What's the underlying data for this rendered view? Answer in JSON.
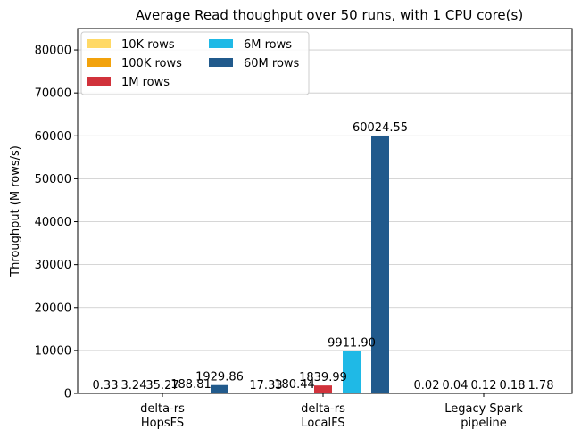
{
  "chart_data": {
    "type": "bar",
    "title": "Average Read thoughput over 50 runs, with 1 CPU core(s)",
    "xlabel": "",
    "ylabel": "Throughput (M rows/s)",
    "ylim": [
      0,
      85000
    ],
    "yticks": [
      0,
      10000,
      20000,
      30000,
      40000,
      50000,
      60000,
      70000,
      80000
    ],
    "grid": "horizontal",
    "legend_placement": "top-left",
    "legend_columns": 2,
    "categories": [
      [
        "delta-rs",
        "HopsFS"
      ],
      [
        "delta-rs",
        "LocalFS"
      ],
      [
        "Legacy Spark",
        "pipeline"
      ]
    ],
    "series": [
      {
        "name": "10K rows",
        "color": "#ffd966",
        "values": [
          0.33,
          17.33,
          0.02
        ],
        "labels": [
          "0.33",
          "17.33",
          "0.02"
        ]
      },
      {
        "name": "100K rows",
        "color": "#f2a20c",
        "values": [
          3.24,
          180.44,
          0.04
        ],
        "labels": [
          "3.24",
          "180.44",
          "0.04"
        ]
      },
      {
        "name": "1M rows",
        "color": "#d1323b",
        "values": [
          35.27,
          1839.99,
          0.12
        ],
        "labels": [
          "35.27",
          "1839.99",
          "0.12"
        ]
      },
      {
        "name": "6M rows",
        "color": "#1fb9e6",
        "values": [
          188.81,
          9911.9,
          0.18
        ],
        "labels": [
          "188.81",
          "9911.90",
          "0.18"
        ]
      },
      {
        "name": "60M rows",
        "color": "#215a8c",
        "values": [
          1929.86,
          60024.55,
          1.78
        ],
        "labels": [
          "1929.86",
          "60024.55",
          "1.78"
        ]
      }
    ]
  }
}
